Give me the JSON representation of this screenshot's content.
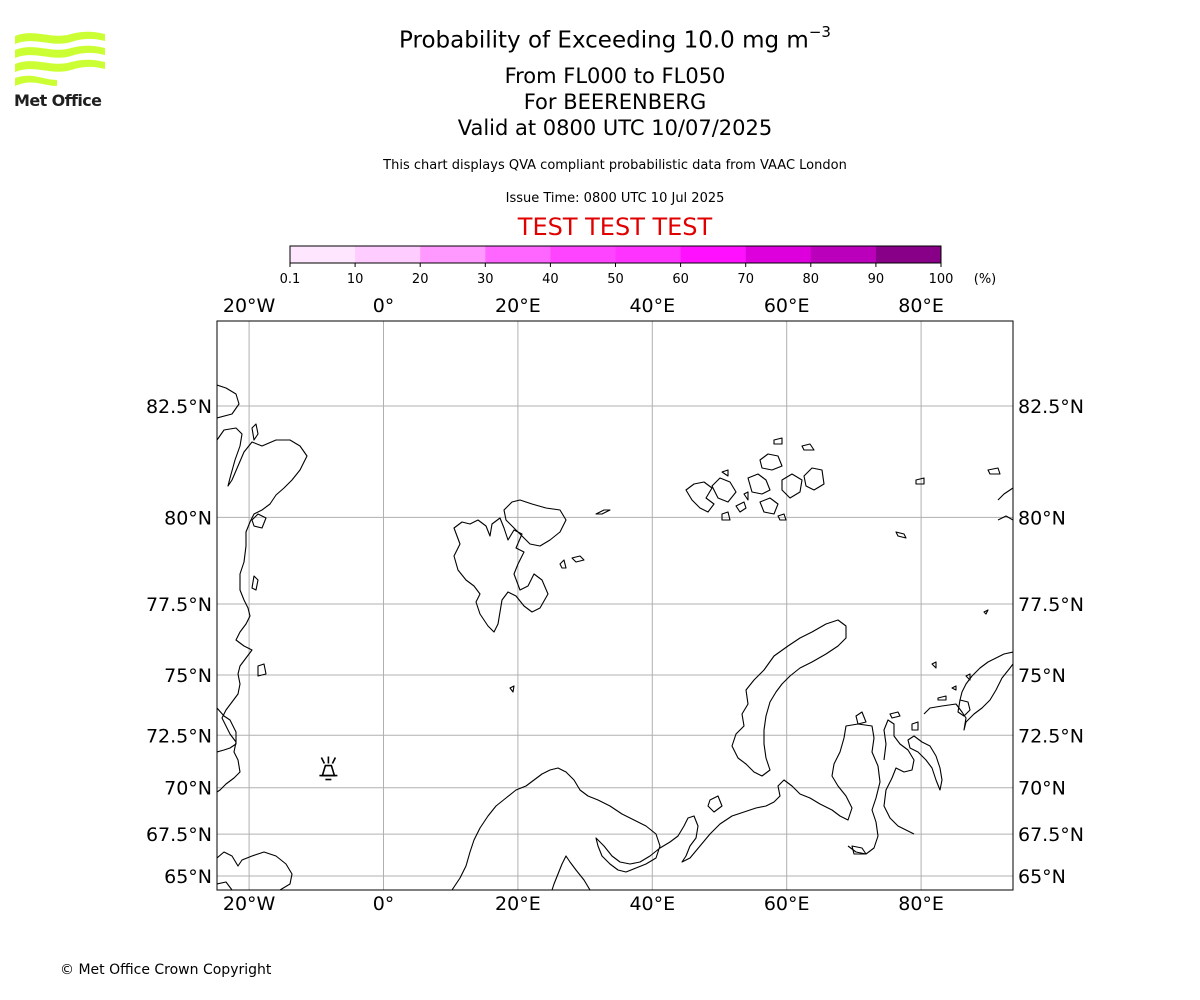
{
  "header": {
    "title_prefix": "Probability of Exceeding 10.0 mg m",
    "title_exponent": "−3",
    "flight_levels": "From FL000 to FL050",
    "volcano": "For BEERENBERG",
    "valid_time": "Valid at 0800 UTC 10/07/2025",
    "description": "This chart displays QVA compliant probabilistic data from VAAC London",
    "issue_time": "Issue Time: 0800 UTC 10 Jul 2025",
    "test_banner": "TEST TEST TEST"
  },
  "logo": {
    "text": "Met Office",
    "color": "#ccff33"
  },
  "colorbar": {
    "tick_labels": [
      "0.1",
      "10",
      "20",
      "30",
      "40",
      "50",
      "60",
      "70",
      "80",
      "90",
      "100"
    ],
    "unit": "(%)",
    "colors": [
      "#ffe6ff",
      "#ffccff",
      "#ff99ff",
      "#ff66ff",
      "#ff44ff",
      "#ff33ff",
      "#ff11ff",
      "#dd00dd",
      "#bb00bb",
      "#880088",
      "#660066"
    ]
  },
  "map": {
    "lon_labels": [
      "20°W",
      "0°",
      "20°E",
      "40°E",
      "60°E",
      "80°E"
    ],
    "lon_values": [
      -20,
      0,
      20,
      40,
      60,
      80
    ],
    "lat_labels": [
      "82.5°N",
      "80°N",
      "77.5°N",
      "75°N",
      "72.5°N",
      "70°N",
      "67.5°N",
      "65°N"
    ],
    "lat_values": [
      82.5,
      80,
      77.5,
      75,
      72.5,
      70,
      67.5,
      65
    ],
    "volcano_marker": {
      "lon": -8.2,
      "lat": 71.0,
      "icon": "volcano-icon"
    },
    "gridline_color": "#b0b0b0"
  },
  "footer": {
    "copyright": "© Met Office Crown Copyright"
  }
}
